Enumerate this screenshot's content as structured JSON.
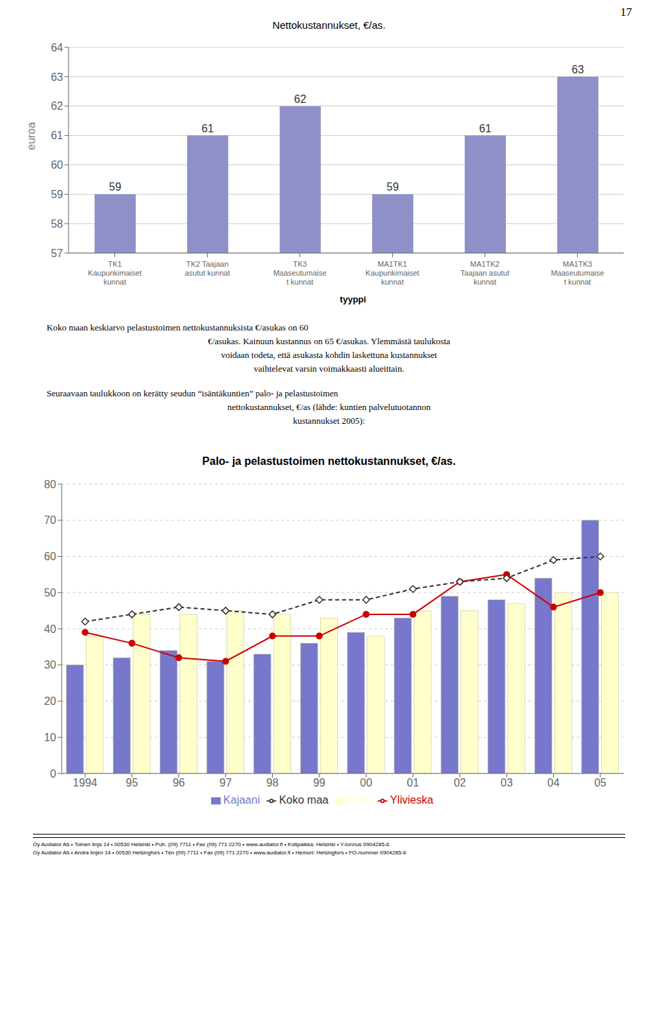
{
  "page_number": "17",
  "paragraphs": [
    [
      "Koko  maan  keskiarvo  pelastustoimen  nettokustannuksista  €/asukas  on  60",
      "€/asukas. Kainuun kustannus on 65 €/asukas. Ylemmästä taulukosta",
      "voidaan  todeta,  että  asukasta  kohdin  laskettuna  kustannukset",
      "vaihtelevat varsin voimakkaasti alueittain."
    ],
    [
      "Seuraavaan taulukkoon on kerätty seudun “isäntäkuntien” palo- ja pelastustoimen",
      "nettokustannukset,   €/as   (lähde:   kuntien   palvelutuotannon",
      "kustannukset 2005):"
    ]
  ],
  "footers": [
    "Oy Audiator Ab • Toinen linja 14 • 00530 Helsinki • Puh. (09) 7711 • Fax (09) 771 2270 • www.audiator.fi • Kotipaikka: Helsinki • Y-tunnus 0904285-6",
    "Oy Audiator Ab • Andra linjen 14 • 00530 Helsingfors • Tén (09) 7711 • Fax (09) 771 2270 • www.audiator.fi • Hemort: Helsingfors • FO-nummer 0904285-6"
  ],
  "chart_data": [
    {
      "type": "bar",
      "title": "Nettokustannukset, €/as.",
      "x_label": "tyyppi",
      "y_label": "euroa",
      "categories": [
        "TK1\nKaupunkimaiset\nkunnat",
        "TK2 Taajaan\nasutut kunnat",
        "TK3\nMaaseutumaise\nt kunnat",
        "MA1TK1\nKaupunkimaiset\nkunnat",
        "MA1TK2\nTaajaan asutut\nkunnat",
        "MA1TK3\nMaaseutumaise\nt kunnat"
      ],
      "values": [
        59,
        61,
        62,
        59,
        61,
        63
      ],
      "color": "#9090c8",
      "ylim": [
        57,
        64
      ],
      "yticks": [
        57,
        58,
        59,
        60,
        61,
        62,
        63,
        64
      ],
      "grid": true,
      "data_labels": true
    },
    {
      "type": "bar",
      "title": "Palo- ja pelastustoimen nettokustannukset, €/as.",
      "categories": [
        "1994",
        "95",
        "96",
        "97",
        "98",
        "99",
        "00",
        "01",
        "02",
        "03",
        "04",
        "05"
      ],
      "series": [
        {
          "name": "Kajaani",
          "type": "bar",
          "color": "#7777cc",
          "values": [
            30,
            32,
            34,
            31,
            33,
            36,
            39,
            43,
            49,
            48,
            54,
            70
          ]
        },
        {
          "name": "Oulu",
          "type": "bar",
          "color": "#ffffcc",
          "values": [
            38,
            44,
            44,
            45,
            44,
            43,
            38,
            45,
            45,
            47,
            50,
            50
          ]
        },
        {
          "name": "Ylivieska",
          "type": "line",
          "color": "#cc0000",
          "marker": "circle",
          "line_style": "solid",
          "values": [
            39,
            36,
            32,
            31,
            38,
            38,
            44,
            44,
            53,
            55,
            46,
            50
          ]
        },
        {
          "name": "Koko maa",
          "type": "line",
          "color": "#333333",
          "marker": "diamond",
          "line_style": "dashed",
          "values": [
            42,
            44,
            46,
            45,
            44,
            48,
            48,
            51,
            53,
            54,
            59,
            60
          ]
        }
      ],
      "ylim": [
        0,
        80
      ],
      "yticks": [
        0,
        10,
        20,
        30,
        40,
        50,
        60,
        70,
        80
      ],
      "grid": true,
      "legend": "bottom"
    }
  ]
}
